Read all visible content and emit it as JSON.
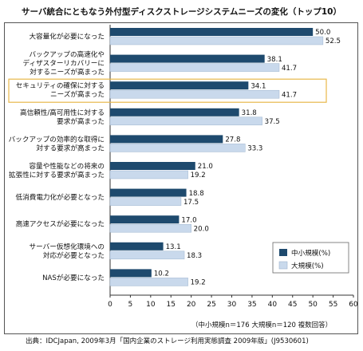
{
  "title": "サーバ統合にともなう外付型ディスクストレージシステムニーズの変化（トップ10）",
  "note": "（中小規模n＝176 大規模n＝120 複数回答）",
  "source": "出典：IDCJapan, 2009年3月「国内企業のストレージ利用実態調査 2009年版」(J9530601)",
  "colors": {
    "small": "#1e4a6e",
    "large": "#c9d9ec",
    "highlight": "#e8b84a",
    "grid": "#cccccc"
  },
  "chart_data": {
    "type": "bar",
    "orientation": "horizontal",
    "categories": [
      [
        "大容量化が必要になった"
      ],
      [
        "バックアップの高速化や",
        "ディザスターリカバリーに",
        "対するニーズが高まった"
      ],
      [
        "セキュリティの確保に対する",
        "ニーズが高まった"
      ],
      [
        "高信頼性/高可用性に対する",
        "要求が高まった"
      ],
      [
        "バックアップの効率的な取得に",
        "対する要求が高まった"
      ],
      [
        "容量や性能などの将来の",
        "拡張性に対する要求が高まった"
      ],
      [
        "低消費電力化が必要となった"
      ],
      [
        "高速アクセスが必要になった"
      ],
      [
        "サーバー仮想化環境への",
        "対応が必要となった"
      ],
      [
        "NASが必要になった"
      ]
    ],
    "series": [
      {
        "name": "中小規模(%)",
        "values": [
          50.0,
          38.1,
          34.1,
          31.8,
          27.8,
          21.0,
          18.8,
          17.0,
          13.1,
          10.2
        ]
      },
      {
        "name": "大規模(%)",
        "values": [
          52.5,
          41.7,
          41.7,
          37.5,
          33.3,
          19.2,
          17.5,
          20.0,
          18.3,
          19.2
        ]
      }
    ],
    "xlim": [
      0,
      60
    ],
    "xticks": [
      0,
      5,
      10,
      15,
      20,
      25,
      30,
      35,
      40,
      45,
      50,
      55,
      60
    ],
    "highlighted_category_index": 2,
    "legend_position": "bottom-right",
    "grid": false
  }
}
